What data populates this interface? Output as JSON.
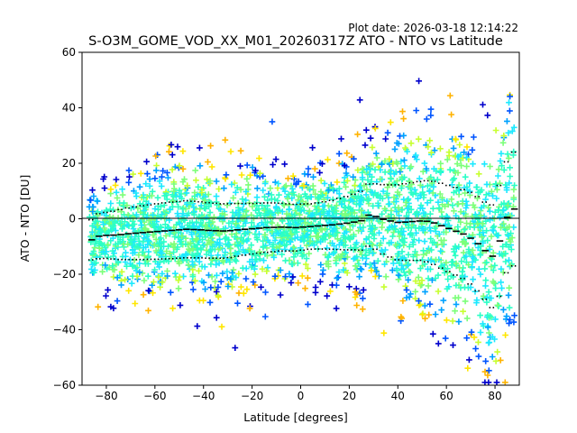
{
  "chart_data": {
    "type": "scatter",
    "plot_date": "Plot date: 2026-03-18 12:14:22",
    "title": "S-O3M_GOME_VOD_XX_M01_20260317Z ATO - NTO vs Latitude",
    "xlabel": "Latitude [degrees]",
    "ylabel": "ATO - NTO [DU]",
    "xlim": [
      -90,
      90
    ],
    "ylim": [
      -60,
      60
    ],
    "xticks": [
      -80,
      -60,
      -40,
      -20,
      0,
      20,
      40,
      60,
      80
    ],
    "yticks": [
      -60,
      -40,
      -20,
      0,
      20,
      40,
      60
    ],
    "grid": false,
    "zero_line": 0,
    "point_colors": [
      "#0000cc",
      "#0055ff",
      "#00a2ff",
      "#1de9ff",
      "#2bffc6",
      "#7cff79",
      "#c7ff30",
      "#ffe600",
      "#ffb300"
    ],
    "bins": [
      {
        "lat": -86,
        "mean": -7.6,
        "sigma": 7.2
      },
      {
        "lat": -83,
        "mean": -6.3,
        "sigma": 8.1
      },
      {
        "lat": -80,
        "mean": -6.0,
        "sigma": 8.3
      },
      {
        "lat": -77,
        "mean": -5.9,
        "sigma": 8.6
      },
      {
        "lat": -74,
        "mean": -5.7,
        "sigma": 9.0
      },
      {
        "lat": -71,
        "mean": -5.4,
        "sigma": 9.3
      },
      {
        "lat": -68,
        "mean": -5.2,
        "sigma": 9.5
      },
      {
        "lat": -65,
        "mean": -5.0,
        "sigma": 9.7
      },
      {
        "lat": -62,
        "mean": -4.8,
        "sigma": 9.8
      },
      {
        "lat": -59,
        "mean": -4.6,
        "sigma": 10.0
      },
      {
        "lat": -56,
        "mean": -4.4,
        "sigma": 10.1
      },
      {
        "lat": -53,
        "mean": -4.2,
        "sigma": 10.2
      },
      {
        "lat": -50,
        "mean": -4.0,
        "sigma": 10.2
      },
      {
        "lat": -47,
        "mean": -3.8,
        "sigma": 10.3
      },
      {
        "lat": -44,
        "mean": -3.9,
        "sigma": 10.2
      },
      {
        "lat": -41,
        "mean": -4.0,
        "sigma": 10.1
      },
      {
        "lat": -38,
        "mean": -4.2,
        "sigma": 10.0
      },
      {
        "lat": -35,
        "mean": -4.3,
        "sigma": 9.9
      },
      {
        "lat": -32,
        "mean": -4.4,
        "sigma": 9.8
      },
      {
        "lat": -29,
        "mean": -4.3,
        "sigma": 9.7
      },
      {
        "lat": -26,
        "mean": -4.0,
        "sigma": 9.5
      },
      {
        "lat": -23,
        "mean": -3.8,
        "sigma": 9.3
      },
      {
        "lat": -20,
        "mean": -3.6,
        "sigma": 9.1
      },
      {
        "lat": -17,
        "mean": -3.4,
        "sigma": 9.0
      },
      {
        "lat": -14,
        "mean": -3.2,
        "sigma": 8.9
      },
      {
        "lat": -11,
        "mean": -3.1,
        "sigma": 8.8
      },
      {
        "lat": -8,
        "mean": -3.0,
        "sigma": 8.6
      },
      {
        "lat": -5,
        "mean": -3.1,
        "sigma": 8.5
      },
      {
        "lat": -2,
        "mean": -3.2,
        "sigma": 8.4
      },
      {
        "lat": 1,
        "mean": -3.0,
        "sigma": 8.3
      },
      {
        "lat": 4,
        "mean": -2.8,
        "sigma": 8.2
      },
      {
        "lat": 7,
        "mean": -2.6,
        "sigma": 8.3
      },
      {
        "lat": 10,
        "mean": -2.4,
        "sigma": 8.5
      },
      {
        "lat": 13,
        "mean": -2.2,
        "sigma": 8.8
      },
      {
        "lat": 16,
        "mean": -1.9,
        "sigma": 9.2
      },
      {
        "lat": 19,
        "mean": -1.6,
        "sigma": 9.6
      },
      {
        "lat": 22,
        "mean": -1.2,
        "sigma": 10.0
      },
      {
        "lat": 25,
        "mean": -0.7,
        "sigma": 10.6
      },
      {
        "lat": 28,
        "mean": 1.3,
        "sigma": 11.2
      },
      {
        "lat": 31,
        "mean": 0.8,
        "sigma": 11.8
      },
      {
        "lat": 34,
        "mean": -0.2,
        "sigma": 12.5
      },
      {
        "lat": 37,
        "mean": -0.8,
        "sigma": 13.0
      },
      {
        "lat": 40,
        "mean": -1.3,
        "sigma": 13.5
      },
      {
        "lat": 43,
        "mean": -1.2,
        "sigma": 13.8
      },
      {
        "lat": 46,
        "mean": -1.0,
        "sigma": 14.0
      },
      {
        "lat": 49,
        "mean": -0.8,
        "sigma": 14.2
      },
      {
        "lat": 52,
        "mean": -0.9,
        "sigma": 14.6
      },
      {
        "lat": 55,
        "mean": -1.5,
        "sigma": 15.0
      },
      {
        "lat": 58,
        "mean": -2.5,
        "sigma": 15.3
      },
      {
        "lat": 61,
        "mean": -3.5,
        "sigma": 15.5
      },
      {
        "lat": 64,
        "mean": -4.5,
        "sigma": 15.8
      },
      {
        "lat": 67,
        "mean": -5.5,
        "sigma": 16.0
      },
      {
        "lat": 70,
        "mean": -7.0,
        "sigma": 16.5
      },
      {
        "lat": 73,
        "mean": -9.0,
        "sigma": 17.0
      },
      {
        "lat": 76,
        "mean": -11.5,
        "sigma": 17.5
      },
      {
        "lat": 79,
        "mean": -13.5,
        "sigma": 18.5
      },
      {
        "lat": 82,
        "mean": -8.0,
        "sigma": 20.0
      },
      {
        "lat": 85,
        "mean": 0.5,
        "sigma": 20.0
      },
      {
        "lat": 88,
        "mean": 3.5,
        "sigma": 20.5
      }
    ]
  }
}
